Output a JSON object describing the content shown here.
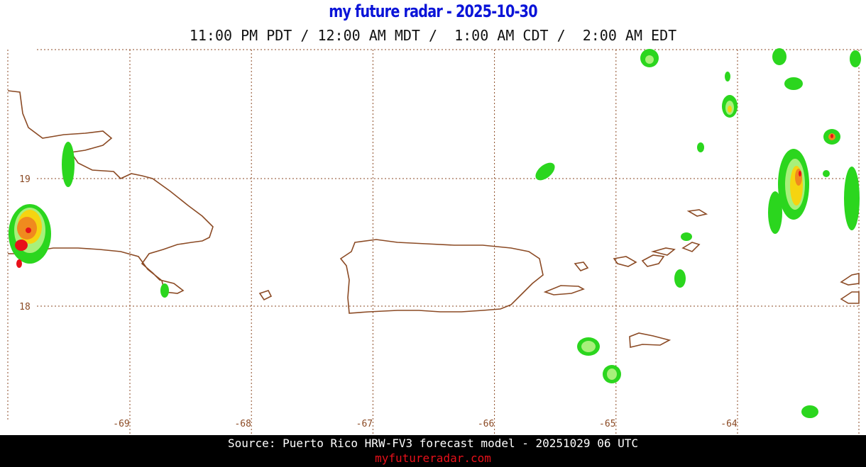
{
  "header": {
    "title": "my future radar - 2025-10-30",
    "times": "11:00 PM PDT / 12:00 AM MDT /  1:00 AM CDT /  2:00 AM EDT"
  },
  "map": {
    "lon_labels": [
      -69,
      -68,
      -67,
      -66,
      -65,
      -64
    ],
    "lat_labels": [
      19,
      18
    ]
  },
  "footer": {
    "source": "Source: Puerto Rico HRW-FV3 forecast model - 20251029 06 UTC",
    "site": "myfutureradar.com"
  }
}
